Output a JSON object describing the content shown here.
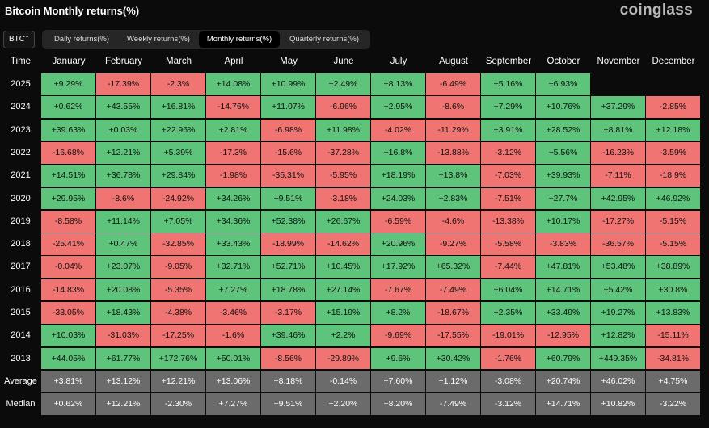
{
  "header": {
    "title": "Bitcoin Monthly returns(%)",
    "brand": "coinglass"
  },
  "controls": {
    "asset": "BTC",
    "tabs": [
      "Daily returns(%)",
      "Weekly returns(%)",
      "Monthly returns(%)",
      "Quarterly returns(%)"
    ],
    "active_tab": 2
  },
  "table": {
    "columns": [
      "Time",
      "January",
      "February",
      "March",
      "April",
      "May",
      "June",
      "July",
      "August",
      "September",
      "October",
      "November",
      "December"
    ],
    "rows": [
      {
        "label": "2025",
        "cells": [
          "+9.29%",
          "-17.39%",
          "-2.3%",
          "+14.08%",
          "+10.99%",
          "+2.49%",
          "+8.13%",
          "-6.49%",
          "+5.16%",
          "+6.93%"
        ]
      },
      {
        "label": "2024",
        "cells": [
          "+0.62%",
          "+43.55%",
          "+16.81%",
          "-14.76%",
          "+11.07%",
          "-6.96%",
          "+2.95%",
          "-8.6%",
          "+7.29%",
          "+10.76%",
          "+37.29%",
          "-2.85%"
        ]
      },
      {
        "label": "2023",
        "cells": [
          "+39.63%",
          "+0.03%",
          "+22.96%",
          "+2.81%",
          "-6.98%",
          "+11.98%",
          "-4.02%",
          "-11.29%",
          "+3.91%",
          "+28.52%",
          "+8.81%",
          "+12.18%"
        ]
      },
      {
        "label": "2022",
        "cells": [
          "-16.68%",
          "+12.21%",
          "+5.39%",
          "-17.3%",
          "-15.6%",
          "-37.28%",
          "+16.8%",
          "-13.88%",
          "-3.12%",
          "+5.56%",
          "-16.23%",
          "-3.59%"
        ]
      },
      {
        "label": "2021",
        "cells": [
          "+14.51%",
          "+36.78%",
          "+29.84%",
          "-1.98%",
          "-35.31%",
          "-5.95%",
          "+18.19%",
          "+13.8%",
          "-7.03%",
          "+39.93%",
          "-7.11%",
          "-18.9%"
        ]
      },
      {
        "label": "2020",
        "cells": [
          "+29.95%",
          "-8.6%",
          "-24.92%",
          "+34.26%",
          "+9.51%",
          "-3.18%",
          "+24.03%",
          "+2.83%",
          "-7.51%",
          "+27.7%",
          "+42.95%",
          "+46.92%"
        ]
      },
      {
        "label": "2019",
        "cells": [
          "-8.58%",
          "+11.14%",
          "+7.05%",
          "+34.36%",
          "+52.38%",
          "+26.67%",
          "-6.59%",
          "-4.6%",
          "-13.38%",
          "+10.17%",
          "-17.27%",
          "-5.15%"
        ]
      },
      {
        "label": "2018",
        "cells": [
          "-25.41%",
          "+0.47%",
          "-32.85%",
          "+33.43%",
          "-18.99%",
          "-14.62%",
          "+20.96%",
          "-9.27%",
          "-5.58%",
          "-3.83%",
          "-36.57%",
          "-5.15%"
        ]
      },
      {
        "label": "2017",
        "cells": [
          "-0.04%",
          "+23.07%",
          "-9.05%",
          "+32.71%",
          "+52.71%",
          "+10.45%",
          "+17.92%",
          "+65.32%",
          "-7.44%",
          "+47.81%",
          "+53.48%",
          "+38.89%"
        ]
      },
      {
        "label": "2016",
        "cells": [
          "-14.83%",
          "+20.08%",
          "-5.35%",
          "+7.27%",
          "+18.78%",
          "+27.14%",
          "-7.67%",
          "-7.49%",
          "+6.04%",
          "+14.71%",
          "+5.42%",
          "+30.8%"
        ]
      },
      {
        "label": "2015",
        "cells": [
          "-33.05%",
          "+18.43%",
          "-4.38%",
          "-3.46%",
          "-3.17%",
          "+15.19%",
          "+8.2%",
          "-18.67%",
          "+2.35%",
          "+33.49%",
          "+19.27%",
          "+13.83%"
        ]
      },
      {
        "label": "2014",
        "cells": [
          "+10.03%",
          "-31.03%",
          "-17.25%",
          "-1.6%",
          "+39.46%",
          "+2.2%",
          "-9.69%",
          "-17.55%",
          "-19.01%",
          "-12.95%",
          "+12.82%",
          "-15.11%"
        ]
      },
      {
        "label": "2013",
        "cells": [
          "+44.05%",
          "+61.77%",
          "+172.76%",
          "+50.01%",
          "-8.56%",
          "-29.89%",
          "+9.6%",
          "+30.42%",
          "-1.76%",
          "+60.79%",
          "+449.35%",
          "-34.81%"
        ]
      }
    ],
    "summary_rows": [
      {
        "label": "Average",
        "cells": [
          "+3.81%",
          "+13.12%",
          "+12.21%",
          "+13.06%",
          "+8.18%",
          "-0.14%",
          "+7.60%",
          "+1.12%",
          "-3.08%",
          "+20.74%",
          "+46.02%",
          "+4.75%"
        ]
      },
      {
        "label": "Median",
        "cells": [
          "+0.62%",
          "+12.21%",
          "-2.30%",
          "+7.27%",
          "+9.51%",
          "+2.20%",
          "+8.20%",
          "-7.49%",
          "-3.12%",
          "+14.71%",
          "+10.82%",
          "-3.22%"
        ]
      }
    ]
  }
}
